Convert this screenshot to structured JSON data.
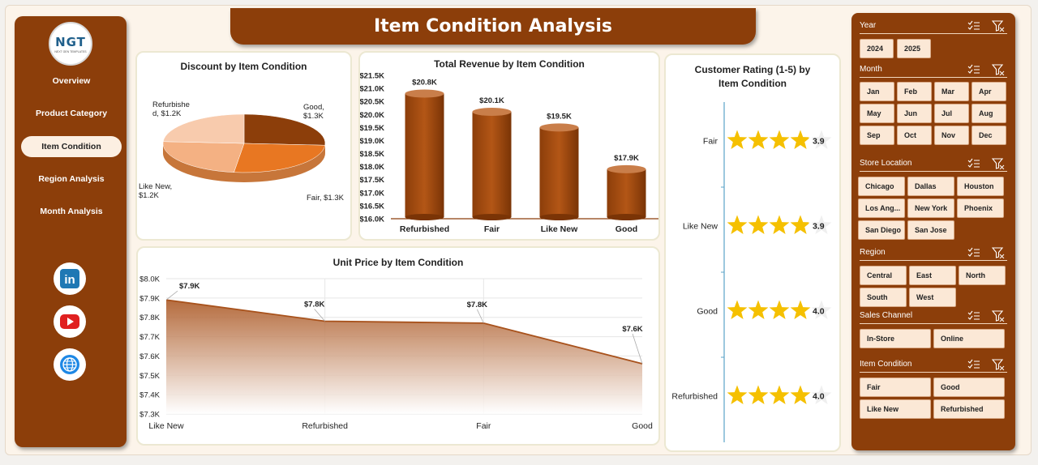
{
  "title": "Item Condition Analysis",
  "logo": {
    "text": "NGT",
    "subtext": "NEXT GEN TEMPLATES"
  },
  "nav": {
    "items": [
      {
        "label": "Overview",
        "active": false
      },
      {
        "label": "Product Category",
        "active": false
      },
      {
        "label": "Item Condition",
        "active": true
      },
      {
        "label": "Region Analysis",
        "active": false
      },
      {
        "label": "Month Analysis",
        "active": false
      }
    ]
  },
  "social": [
    {
      "icon": "linkedin-icon",
      "label": "in"
    },
    {
      "icon": "youtube-icon"
    },
    {
      "icon": "globe-icon"
    }
  ],
  "colors": {
    "brand": "#8c3e0a",
    "accent": "#e87722",
    "star": "#f5c000",
    "chip": "#fbe8d6"
  },
  "charts": {
    "discount": {
      "title": "Discount by Item Condition",
      "chart_data": {
        "type": "pie",
        "categories": [
          "Good",
          "Fair",
          "Like New",
          "Refurbished"
        ],
        "values": [
          1.3,
          1.3,
          1.2,
          1.2
        ],
        "unit": "K",
        "data_labels": [
          "Good, $1.3K",
          "Fair, $1.3K",
          "Like New, $1.2K",
          "Refurbished, $1.2K"
        ],
        "colors": [
          "#8c3e0a",
          "#e87722",
          "#f4b183",
          "#f8cbad"
        ]
      }
    },
    "revenue": {
      "title": "Total Revenue by Item Condition",
      "chart_data": {
        "type": "bar",
        "categories": [
          "Refurbished",
          "Fair",
          "Like New",
          "Good"
        ],
        "values": [
          20.8,
          20.1,
          19.5,
          17.9
        ],
        "data_labels": [
          "$20.8K",
          "$20.1K",
          "$19.5K",
          "$17.9K"
        ],
        "ylim": [
          16.0,
          21.5
        ],
        "yticks": [
          "$16.0K",
          "$16.5K",
          "$17.0K",
          "$17.5K",
          "$18.0K",
          "$18.5K",
          "$19.0K",
          "$19.5K",
          "$20.0K",
          "$20.5K",
          "$21.0K",
          "$21.5K"
        ]
      }
    },
    "unit_price": {
      "title": "Unit Price by Item Condition",
      "chart_data": {
        "type": "area",
        "categories": [
          "Like New",
          "Refurbished",
          "Fair",
          "Good"
        ],
        "values": [
          7.89,
          7.78,
          7.77,
          7.56
        ],
        "data_labels": [
          "$7.9K",
          "$7.8K",
          "$7.8K",
          "$7.6K"
        ],
        "ylim": [
          7.3,
          8.0
        ],
        "yticks": [
          "$7.3K",
          "$7.4K",
          "$7.5K",
          "$7.6K",
          "$7.7K",
          "$7.8K",
          "$7.9K",
          "$8.0K"
        ]
      }
    },
    "rating": {
      "title_line1": "Customer Rating (1-5) by",
      "title_line2": "Item Condition",
      "chart_data": {
        "type": "bar",
        "categories": [
          "Fair",
          "Like New",
          "Good",
          "Refurbished"
        ],
        "values": [
          3.9,
          3.9,
          4.0,
          4.0
        ],
        "data_labels": [
          "3.9",
          "3.9",
          "4.0",
          "4.0"
        ],
        "scale_max": 5
      }
    }
  },
  "filters": [
    {
      "title": "Year",
      "chips": [
        "2024",
        "2025"
      ]
    },
    {
      "title": "Month",
      "chips": [
        "Jan",
        "Feb",
        "Mar",
        "Apr",
        "May",
        "Jun",
        "Jul",
        "Aug",
        "Sep",
        "Oct",
        "Nov",
        "Dec"
      ]
    },
    {
      "title": "Store Location",
      "chips": [
        "Chicago",
        "Dallas",
        "Houston",
        "Los Ang...",
        "New York",
        "Phoenix",
        "San Diego",
        "San Jose"
      ]
    },
    {
      "title": "Region",
      "chips": [
        "Central",
        "East",
        "North",
        "South",
        "West"
      ]
    },
    {
      "title": "Sales Channel",
      "chips": [
        "In-Store",
        "Online"
      ]
    },
    {
      "title": "Item Condition",
      "chips": [
        "Fair",
        "Good",
        "Like New",
        "Refurbished"
      ]
    }
  ]
}
